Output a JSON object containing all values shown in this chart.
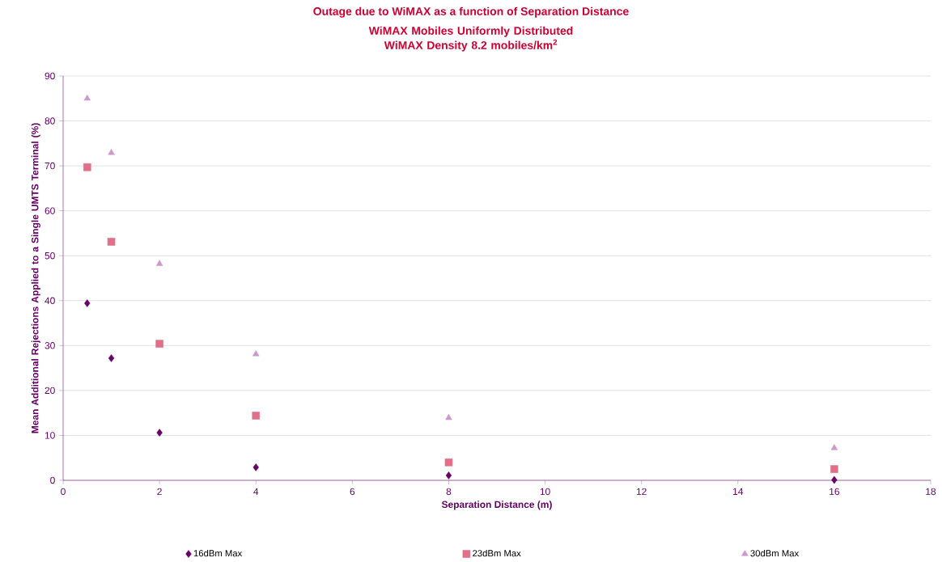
{
  "chart_data": {
    "type": "scatter",
    "title": "Outage due to WiMAX as a function of Separation Distance",
    "subtitle": "WiMAX Mobiles Uniformly Distributed WiMAX Density 8.2 mobiles/km$^{2}$",
    "xlabel": "Separation Distance (m)",
    "ylabel": "Mean Additional Rejections Applied to a Single UMTS Terminal (%)",
    "x": [
      0.5,
      1,
      2,
      4,
      8,
      16
    ],
    "series": [
      {
        "name": "16dBm Max",
        "color": "#660066",
        "marker": "diamond",
        "values": [
          39.4,
          27.2,
          10.6,
          2.9,
          1.1,
          0.1
        ]
      },
      {
        "name": "23dBm Max",
        "color": "#e0708a",
        "marker": "square",
        "values": [
          69.7,
          53.1,
          30.4,
          14.4,
          4.0,
          2.5
        ]
      },
      {
        "name": "30dBm Max",
        "color": "#cc99cc",
        "marker": "triangle",
        "values": [
          85.0,
          72.9,
          48.2,
          28.1,
          13.9,
          7.2
        ]
      }
    ],
    "xlim": [
      0,
      18
    ],
    "xticks": [
      0,
      2,
      4,
      6,
      8,
      10,
      12,
      14,
      16,
      18
    ],
    "ylim": [
      0,
      90
    ],
    "yticks": [
      0,
      10,
      20,
      30,
      40,
      50,
      60,
      70,
      80,
      90
    ],
    "grid": "y",
    "legend": "bottom"
  }
}
